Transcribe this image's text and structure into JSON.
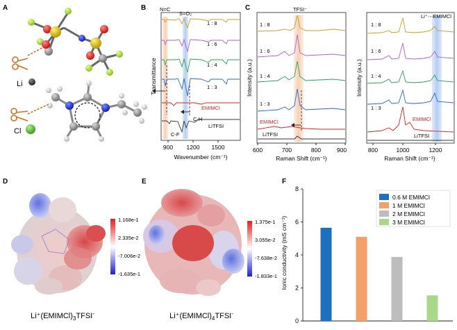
{
  "panels": {
    "A": {
      "label": "A",
      "atoms": {
        "li": "Li",
        "cl": "Cl"
      }
    },
    "B": {
      "label": "B",
      "xlabel": "Wavenumber (cm⁻¹)",
      "ylabel": "Transmittance",
      "xticks": [
        "900",
        "1200",
        "1500"
      ],
      "xlim": [
        750,
        1700
      ],
      "band_labels": {
        "nc": "N=C",
        "so2": "S=O₂",
        "ch": "C-H",
        "cf": "C-F"
      },
      "traces": [
        {
          "label": "1 : 8",
          "color": "#c9a020"
        },
        {
          "label": "1 : 6",
          "color": "#b060d0"
        },
        {
          "label": "1 : 4",
          "color": "#2aa05a"
        },
        {
          "label": "1 : 3",
          "color": "#2a66c8"
        },
        {
          "label": "EMIMCl",
          "color": "#e02020"
        },
        {
          "label": "LiTFSI",
          "color": "#333333"
        }
      ]
    },
    "C": {
      "label": "C",
      "left": {
        "xlabel": "Raman Shift (cm⁻¹)",
        "ylabel": "Intensity (a.u.)",
        "xticks": [
          "600",
          "700",
          "800",
          "900"
        ],
        "xlim": [
          600,
          900
        ],
        "band_label": "TFSI⁻",
        "traces": [
          "1 : 8",
          "1 : 6",
          "1 : 4",
          "1 : 3",
          "EMIMCl",
          "LiTFSI"
        ]
      },
      "right": {
        "xlabel": "Raman Shift (cm⁻¹)",
        "ylabel": "Intensity (a.u.)",
        "xticks": [
          "800",
          "1000",
          "1200"
        ],
        "xlim": [
          780,
          1300
        ],
        "band_label": "Li⁺⋯EMIMCl",
        "traces": [
          "1 : 8",
          "1 : 6",
          "1 : 4",
          "1 : 3",
          "EMIMCl",
          "LiTFSI"
        ]
      }
    },
    "D": {
      "label": "D",
      "colorbar": [
        "1.168e-1",
        "2.335e-2",
        "-7.006e-2",
        "-1.635e-1"
      ],
      "caption_main": "Li⁺(EMIMCl)",
      "caption_sub1": "3",
      "caption_mid": "TFSI",
      "caption_sup": "-"
    },
    "E": {
      "label": "E",
      "colorbar": [
        "1.375e-1",
        "3.055e-2",
        "-7.638e-2",
        "-1.833e-1"
      ],
      "caption_main": "Li⁺(EMIMCl)",
      "caption_sub1": "4",
      "caption_mid": "TFSI",
      "caption_sup": "-"
    }
  },
  "chart_data": {
    "type": "bar",
    "panel_label": "F",
    "categories": [
      "0.6 M EMIMCl",
      "1 M EMIMCl",
      "2 M EMIMCl",
      "3 M EMIMCl"
    ],
    "values": [
      5.65,
      5.1,
      3.88,
      1.55
    ],
    "colors": [
      "#1f6fbf",
      "#f4a06a",
      "#bdbdbd",
      "#a8d888"
    ],
    "xlabel": "",
    "ylabel": "Ionic conductivity (mS cm⁻¹)",
    "ylim": [
      0,
      8
    ],
    "yticks": [
      "0",
      "2",
      "4",
      "6",
      "8"
    ],
    "legend": [
      "0.6 M EMIMCl",
      "1 M EMIMCl",
      "2 M EMIMCl",
      "3 M EMIMCl"
    ],
    "legend_position": "top-right",
    "grid": false
  }
}
